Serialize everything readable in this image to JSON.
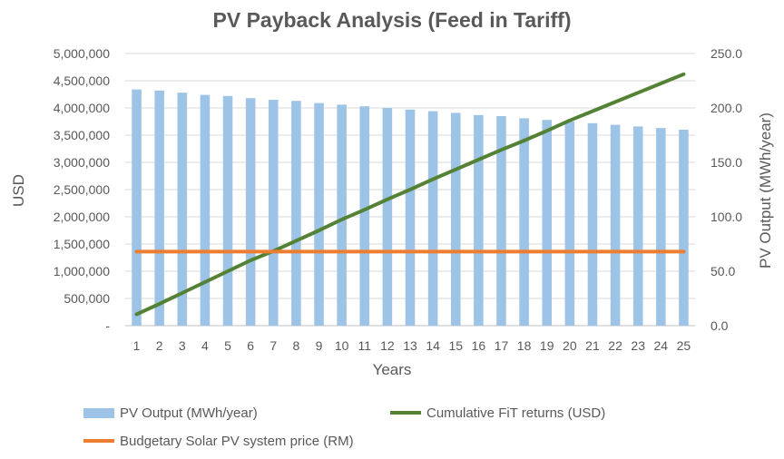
{
  "chart_data": {
    "type": "bar",
    "title": "PV Payback Analysis (Feed in Tariff)",
    "xlabel": "Years",
    "ylabel": "USD",
    "y2label": "PV Output (MWh/year)",
    "categories": [
      1,
      2,
      3,
      4,
      5,
      6,
      7,
      8,
      9,
      10,
      11,
      12,
      13,
      14,
      15,
      16,
      17,
      18,
      19,
      20,
      21,
      22,
      23,
      24,
      25
    ],
    "ylim": [
      0,
      5000000
    ],
    "y2lim": [
      0,
      250
    ],
    "yticks": [
      "-",
      "500,000",
      "1,000,000",
      "1,500,000",
      "2,000,000",
      "2,500,000",
      "3,000,000",
      "3,500,000",
      "4,000,000",
      "4,500,000",
      "5,000,000"
    ],
    "y2ticks": [
      "0.0",
      "50.0",
      "100.0",
      "150.0",
      "200.0",
      "250.0"
    ],
    "grid": true,
    "legend_position": "bottom",
    "series": [
      {
        "name": "PV Output (MWh/year)",
        "type": "bar",
        "axis": "right",
        "color": "#9DC3E6",
        "values": [
          217.0,
          216.0,
          214.0,
          212.0,
          211.0,
          209.0,
          207.5,
          206.5,
          204.5,
          203.0,
          201.5,
          200.0,
          198.5,
          197.0,
          195.5,
          193.5,
          192.5,
          190.5,
          189.0,
          187.5,
          186.0,
          184.5,
          183.0,
          181.5,
          180.0
        ]
      },
      {
        "name": "Cumulative FiT returns (USD)",
        "type": "line",
        "axis": "left",
        "color": "#548235",
        "values": [
          210000,
          400000,
          600000,
          800000,
          1000000,
          1200000,
          1370000,
          1560000,
          1750000,
          1950000,
          2130000,
          2320000,
          2500000,
          2690000,
          2870000,
          3050000,
          3230000,
          3400000,
          3580000,
          3770000,
          3940000,
          4110000,
          4280000,
          4450000,
          4620000
        ]
      },
      {
        "name": "Budgetary Solar PV system price (RM)",
        "type": "line",
        "axis": "left",
        "color": "#ED7D31",
        "values": [
          1360000,
          1360000,
          1360000,
          1360000,
          1360000,
          1360000,
          1360000,
          1360000,
          1360000,
          1360000,
          1360000,
          1360000,
          1360000,
          1360000,
          1360000,
          1360000,
          1360000,
          1360000,
          1360000,
          1360000,
          1360000,
          1360000,
          1360000,
          1360000,
          1360000
        ]
      }
    ]
  }
}
